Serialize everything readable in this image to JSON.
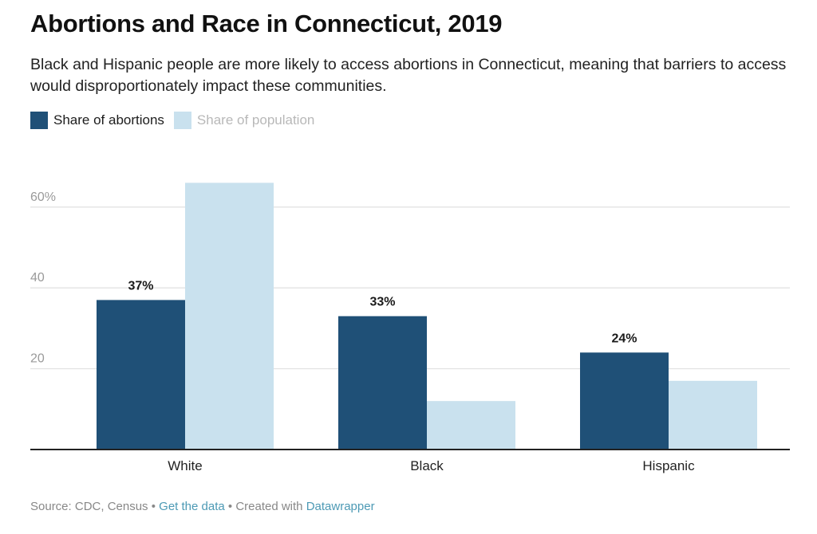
{
  "chart_data": {
    "type": "bar",
    "title": "Abortions and Race in Connecticut, 2019",
    "subtitle": "Black and Hispanic people are more likely to access abortions in Connecticut, meaning that barriers to access would disproportionately impact these communities.",
    "categories": [
      "White",
      "Black",
      "Hispanic"
    ],
    "series": [
      {
        "name": "Share of abortions",
        "values": [
          37,
          33,
          24
        ],
        "color": "#1f5077",
        "labels": [
          "37%",
          "33%",
          "24%"
        ]
      },
      {
        "name": "Share of population",
        "values": [
          66,
          12,
          17
        ],
        "color": "#c9e1ee",
        "labels": [
          "",
          "",
          ""
        ]
      }
    ],
    "xlabel": "",
    "ylabel": "",
    "ylim": [
      0,
      66
    ],
    "yticks": [
      20,
      40,
      60
    ],
    "ytick_labels": [
      "20",
      "40",
      "60%"
    ],
    "grid": true,
    "legend": "top-left"
  },
  "footer": {
    "source": "Source: CDC, Census",
    "separator": " • ",
    "get_data_link": "Get the data",
    "created_with": "Created with ",
    "datawrapper_link": "Datawrapper"
  }
}
